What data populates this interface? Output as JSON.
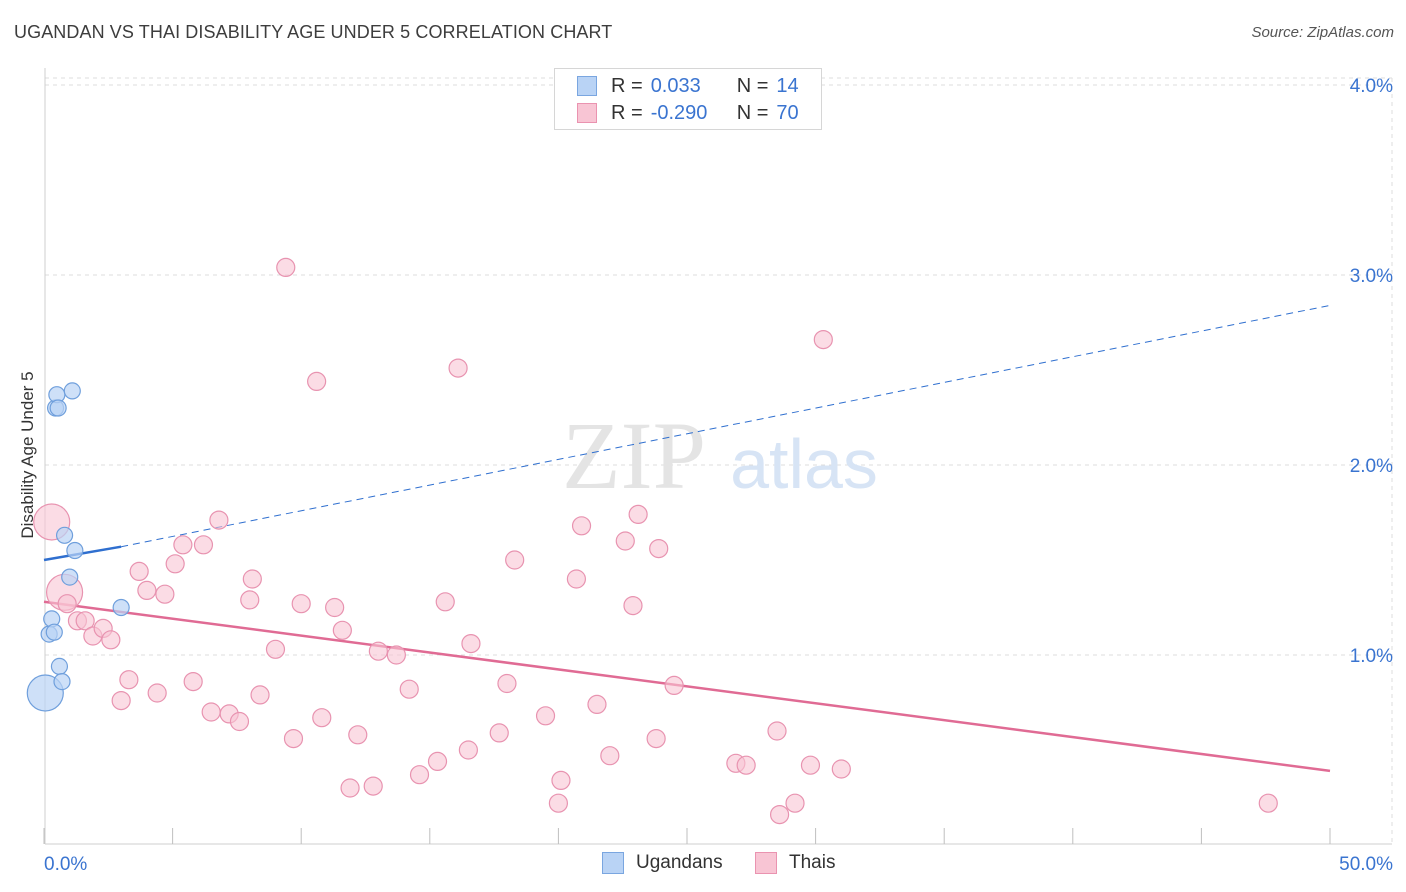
{
  "title": "UGANDAN VS THAI DISABILITY AGE UNDER 5 CORRELATION CHART",
  "source": "Source: ZipAtlas.com",
  "watermark": {
    "zip": "ZIP",
    "atlas": "atlas"
  },
  "legend_top": {
    "rows": [
      {
        "r_label": "R =",
        "r_value": "0.033",
        "n_label": "N =",
        "n_value": "14"
      },
      {
        "r_label": "R =",
        "r_value": "-0.290",
        "n_label": "N =",
        "n_value": "70"
      }
    ]
  },
  "legend_bottom": {
    "items": [
      "Ugandans",
      "Thais"
    ]
  },
  "colors": {
    "blue_fill": "#b9d3f5",
    "blue_stroke": "#6f9fdc",
    "blue_line": "#2f6fcf",
    "pink_fill": "#f8c5d4",
    "pink_stroke": "#e893b0",
    "pink_line": "#e06b94",
    "axis_label": "#3a74d0",
    "grid": "#dddddd"
  },
  "chart_data": {
    "type": "scatter",
    "title": "UGANDAN VS THAI DISABILITY AGE UNDER 5 CORRELATION CHART",
    "xlabel": "",
    "ylabel": "Disability Age Under 5",
    "xlim": [
      0,
      50
    ],
    "ylim": [
      0,
      4.2
    ],
    "x_tick_labels": [
      "0.0%",
      "50.0%"
    ],
    "y_ticks": [
      1.0,
      2.0,
      3.0,
      4.0
    ],
    "y_tick_labels": [
      "1.0%",
      "2.0%",
      "3.0%",
      "4.0%"
    ],
    "grid": true,
    "series": [
      {
        "name": "Ugandans",
        "R": 0.033,
        "N": 14,
        "points": [
          {
            "x": 0.05,
            "y": 0.8,
            "big": true
          },
          {
            "x": 0.2,
            "y": 1.11
          },
          {
            "x": 0.3,
            "y": 1.19
          },
          {
            "x": 0.4,
            "y": 1.12
          },
          {
            "x": 0.45,
            "y": 2.3
          },
          {
            "x": 0.5,
            "y": 2.37
          },
          {
            "x": 0.55,
            "y": 2.3
          },
          {
            "x": 0.6,
            "y": 0.94
          },
          {
            "x": 0.7,
            "y": 0.86
          },
          {
            "x": 0.8,
            "y": 1.63
          },
          {
            "x": 1.0,
            "y": 1.41
          },
          {
            "x": 1.1,
            "y": 2.39
          },
          {
            "x": 1.2,
            "y": 1.55
          },
          {
            "x": 3.0,
            "y": 1.25
          }
        ],
        "trend_solid": {
          "x": [
            0,
            3.0
          ],
          "y": [
            1.5,
            1.57
          ]
        },
        "trend_dashed": {
          "x": [
            3.0,
            50
          ],
          "y": [
            1.57,
            2.84
          ]
        }
      },
      {
        "name": "Thais",
        "R": -0.29,
        "N": 70,
        "points": [
          {
            "x": 0.3,
            "y": 1.7,
            "big": true
          },
          {
            "x": 0.8,
            "y": 1.33,
            "big": true
          },
          {
            "x": 0.9,
            "y": 1.27
          },
          {
            "x": 1.3,
            "y": 1.18
          },
          {
            "x": 1.6,
            "y": 1.18
          },
          {
            "x": 1.9,
            "y": 1.1
          },
          {
            "x": 2.3,
            "y": 1.14
          },
          {
            "x": 2.6,
            "y": 1.08
          },
          {
            "x": 3.0,
            "y": 0.76
          },
          {
            "x": 3.3,
            "y": 0.87
          },
          {
            "x": 3.7,
            "y": 1.44
          },
          {
            "x": 4.0,
            "y": 1.34
          },
          {
            "x": 4.4,
            "y": 0.8
          },
          {
            "x": 4.7,
            "y": 1.32
          },
          {
            "x": 5.1,
            "y": 1.48
          },
          {
            "x": 5.4,
            "y": 1.58
          },
          {
            "x": 5.8,
            "y": 0.86
          },
          {
            "x": 6.2,
            "y": 1.58
          },
          {
            "x": 6.5,
            "y": 0.7
          },
          {
            "x": 6.8,
            "y": 1.71
          },
          {
            "x": 7.2,
            "y": 0.69
          },
          {
            "x": 7.6,
            "y": 0.65
          },
          {
            "x": 8.1,
            "y": 1.4
          },
          {
            "x": 8.4,
            "y": 0.79
          },
          {
            "x": 8.0,
            "y": 1.29
          },
          {
            "x": 9.0,
            "y": 1.03
          },
          {
            "x": 9.4,
            "y": 3.04
          },
          {
            "x": 9.7,
            "y": 0.56
          },
          {
            "x": 10.0,
            "y": 1.27
          },
          {
            "x": 10.6,
            "y": 2.44
          },
          {
            "x": 10.8,
            "y": 0.67
          },
          {
            "x": 11.3,
            "y": 1.25
          },
          {
            "x": 11.6,
            "y": 1.13
          },
          {
            "x": 11.9,
            "y": 0.3
          },
          {
            "x": 12.2,
            "y": 0.58
          },
          {
            "x": 12.8,
            "y": 0.31
          },
          {
            "x": 13.0,
            "y": 1.02
          },
          {
            "x": 13.7,
            "y": 1.0
          },
          {
            "x": 14.2,
            "y": 0.82
          },
          {
            "x": 14.6,
            "y": 0.37
          },
          {
            "x": 15.3,
            "y": 0.44
          },
          {
            "x": 15.6,
            "y": 1.28
          },
          {
            "x": 16.1,
            "y": 2.51
          },
          {
            "x": 16.5,
            "y": 0.5
          },
          {
            "x": 16.6,
            "y": 1.06
          },
          {
            "x": 17.7,
            "y": 0.59
          },
          {
            "x": 18.0,
            "y": 0.85
          },
          {
            "x": 18.3,
            "y": 1.5
          },
          {
            "x": 19.5,
            "y": 0.68
          },
          {
            "x": 20.0,
            "y": 0.22
          },
          {
            "x": 20.1,
            "y": 0.34
          },
          {
            "x": 20.7,
            "y": 1.4
          },
          {
            "x": 20.9,
            "y": 1.68
          },
          {
            "x": 21.5,
            "y": 0.74
          },
          {
            "x": 22.0,
            "y": 0.47
          },
          {
            "x": 22.6,
            "y": 1.6
          },
          {
            "x": 22.9,
            "y": 1.26
          },
          {
            "x": 23.1,
            "y": 1.74
          },
          {
            "x": 23.8,
            "y": 0.56
          },
          {
            "x": 23.9,
            "y": 1.56
          },
          {
            "x": 24.5,
            "y": 0.84
          },
          {
            "x": 26.9,
            "y": 0.43
          },
          {
            "x": 27.3,
            "y": 0.42
          },
          {
            "x": 28.5,
            "y": 0.6
          },
          {
            "x": 28.6,
            "y": 0.16
          },
          {
            "x": 29.2,
            "y": 0.22
          },
          {
            "x": 29.8,
            "y": 0.42
          },
          {
            "x": 30.3,
            "y": 2.66
          },
          {
            "x": 31.0,
            "y": 0.4
          },
          {
            "x": 47.6,
            "y": 0.22
          }
        ],
        "trend_solid": {
          "x": [
            0,
            50
          ],
          "y": [
            1.28,
            0.39
          ]
        }
      }
    ]
  }
}
